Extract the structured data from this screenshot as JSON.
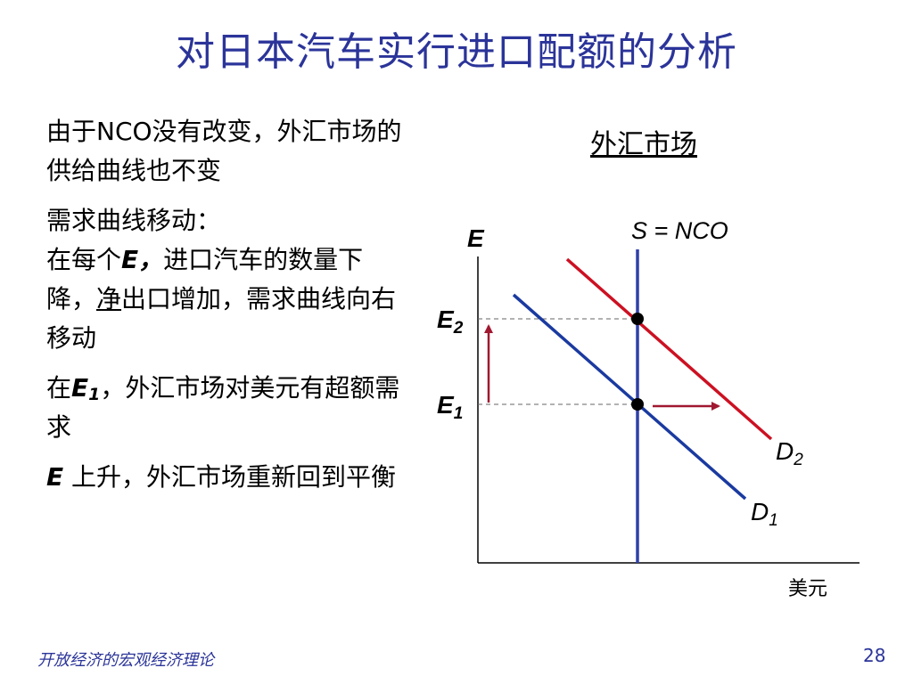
{
  "title": "对日本汽车实行进口配额的分析",
  "text": {
    "p1": "由于NCO没有改变，外汇市场的供给曲线也不变",
    "p2_line1": "需求曲线移动：",
    "p2_pre": "在每个",
    "p2_e": "E，",
    "p2_mid": "进口汽车的数量下降，",
    "p2_underlined": "净",
    "p2_post": "出口增加，需求曲线向右移动",
    "p3_pre": "在",
    "p3_e": "E",
    "p3_sub": "1",
    "p3_post": "，外汇市场对美元有超额需求",
    "p4_e": "E",
    "p4_post": " 上升，外汇市场重新回到平衡"
  },
  "diagram": {
    "title": "外汇市场",
    "y_axis_label": "E",
    "x_axis_label": "美元",
    "supply_label": "S = NCO",
    "e2_label": "E",
    "e2_sub": "2",
    "e1_label": "E",
    "e1_sub": "1",
    "d2_label": "D",
    "d2_sub": "2",
    "d1_label": "D",
    "d1_sub": "1",
    "colors": {
      "supply": "#3040a8",
      "demand1": "#1a3aa0",
      "demand2": "#cc1122",
      "arrow": "#a01830",
      "axis": "#000000",
      "dashed": "#666666"
    }
  },
  "footer": {
    "left": "开放经济的宏观经济理论",
    "page": "28"
  }
}
